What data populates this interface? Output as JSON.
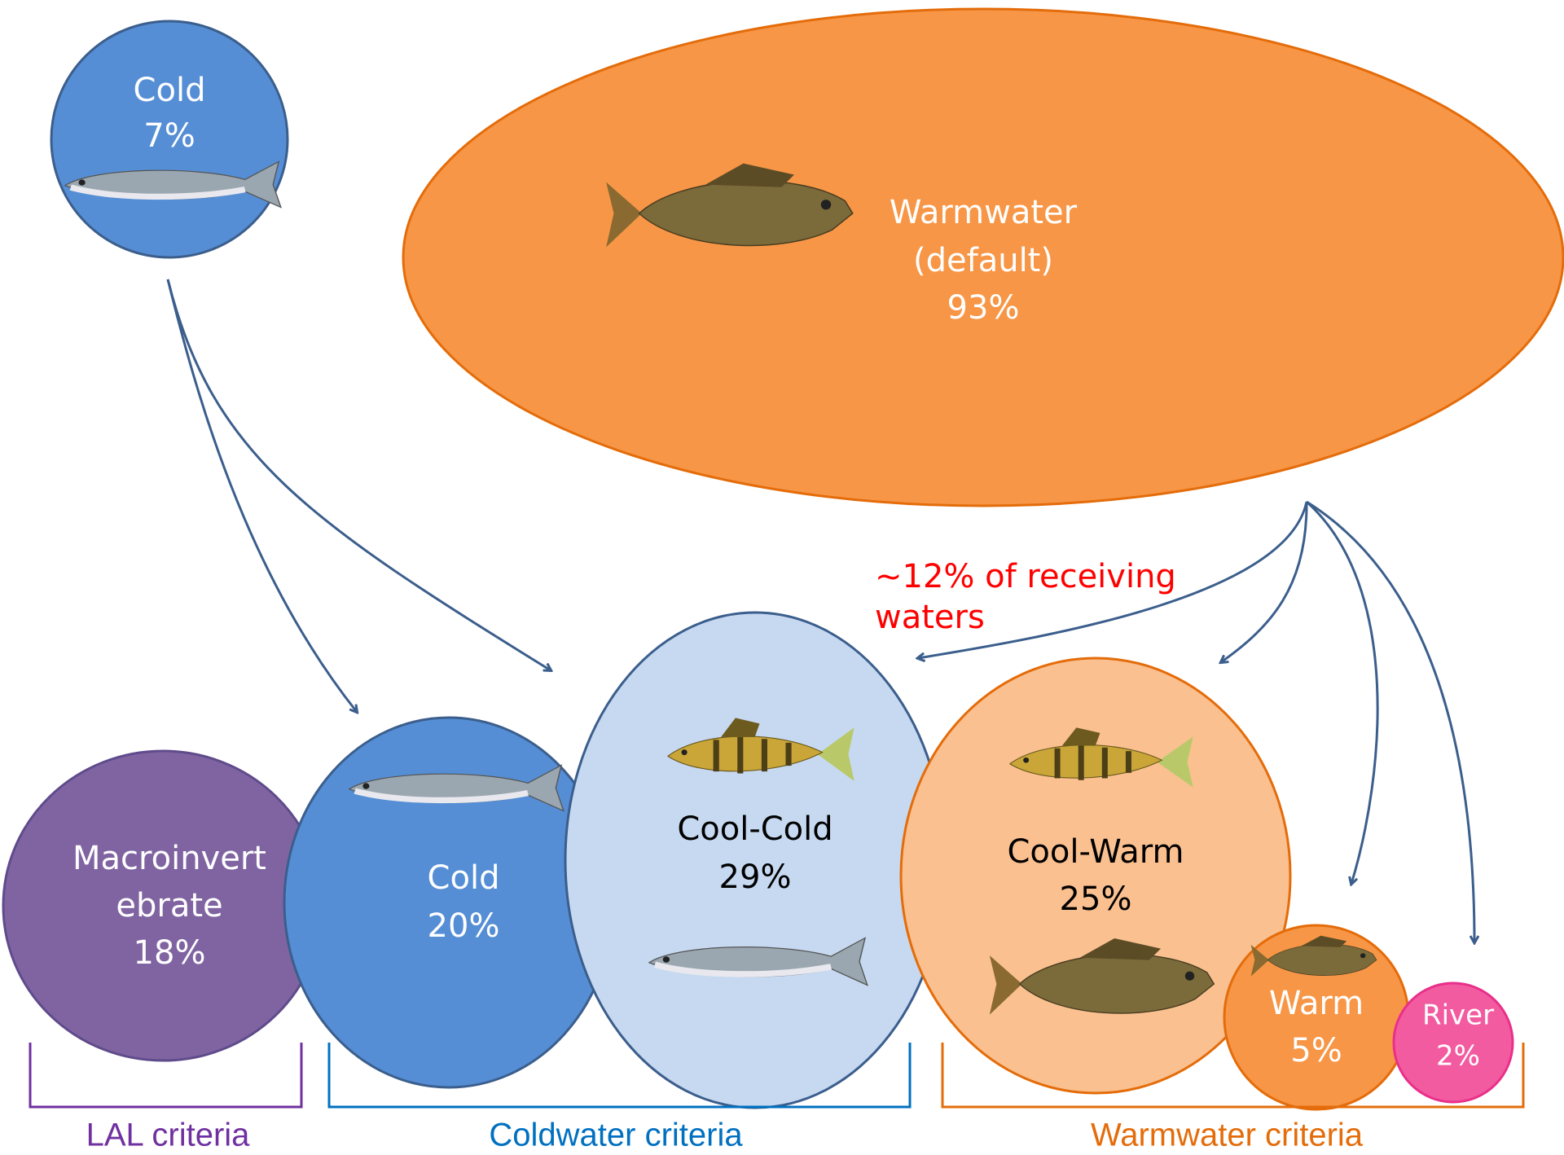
{
  "nodes": [
    {
      "lines": [
        "Cold",
        "7%"
      ]
    },
    {
      "lines": [
        "Warmwater",
        "(default)",
        "93%"
      ]
    },
    {
      "lines": [
        "Macroinvert",
        "ebrate",
        "18%"
      ]
    },
    {
      "lines": [
        "Cold",
        "20%"
      ]
    },
    {
      "lines": [
        "Cool-Cold",
        "29%"
      ]
    },
    {
      "lines": [
        "Cool-Warm",
        "25%"
      ]
    },
    {
      "lines": [
        "Warm",
        "5%"
      ]
    },
    {
      "lines": [
        "River",
        "2%"
      ]
    }
  ],
  "annotation": {
    "lines": [
      "~12% of receiving",
      "waters"
    ]
  },
  "groups": [
    {
      "label": "LAL criteria"
    },
    {
      "label": "Coldwater criteria"
    },
    {
      "label": "Warmwater criteria"
    }
  ]
}
